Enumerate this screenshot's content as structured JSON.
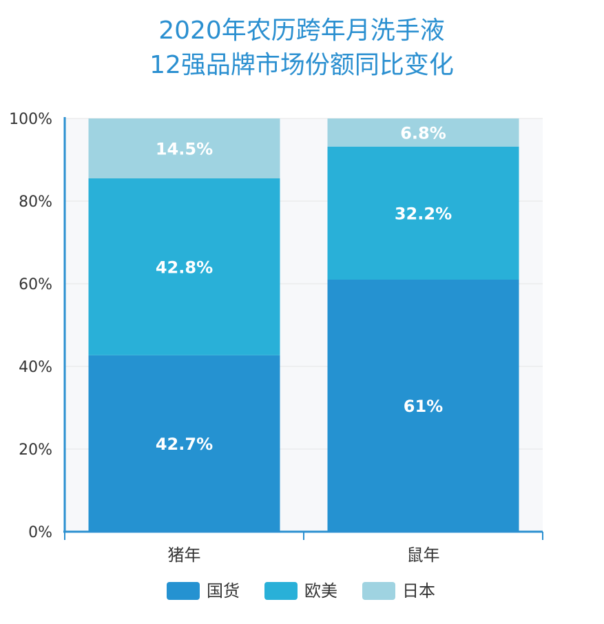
{
  "chart_data": {
    "type": "bar",
    "stacked": true,
    "title_lines": [
      "2020年农历跨年月洗手液",
      "12强品牌市场份额同比变化"
    ],
    "categories": [
      "猪年",
      "鼠年"
    ],
    "series": [
      {
        "name": "国货",
        "values": [
          42.7,
          61
        ],
        "labels": [
          "42.7%",
          "61%"
        ],
        "color": "#2592d1"
      },
      {
        "name": "欧美",
        "values": [
          42.8,
          32.2
        ],
        "labels": [
          "42.8%",
          "32.2%"
        ],
        "color": "#29b0d8"
      },
      {
        "name": "日本",
        "values": [
          14.5,
          6.8
        ],
        "labels": [
          "14.5%",
          "6.8%"
        ],
        "color": "#9fd3e1"
      }
    ],
    "ylim": [
      0,
      100
    ],
    "y_ticks": [
      {
        "value": 0,
        "label": "0%"
      },
      {
        "value": 20,
        "label": "20%"
      },
      {
        "value": 40,
        "label": "40%"
      },
      {
        "value": 60,
        "label": "60%"
      },
      {
        "value": 80,
        "label": "80%"
      },
      {
        "value": 100,
        "label": "100%"
      }
    ],
    "legend_position": "bottom",
    "grid": true,
    "axis_color": "#2a8fd0"
  }
}
